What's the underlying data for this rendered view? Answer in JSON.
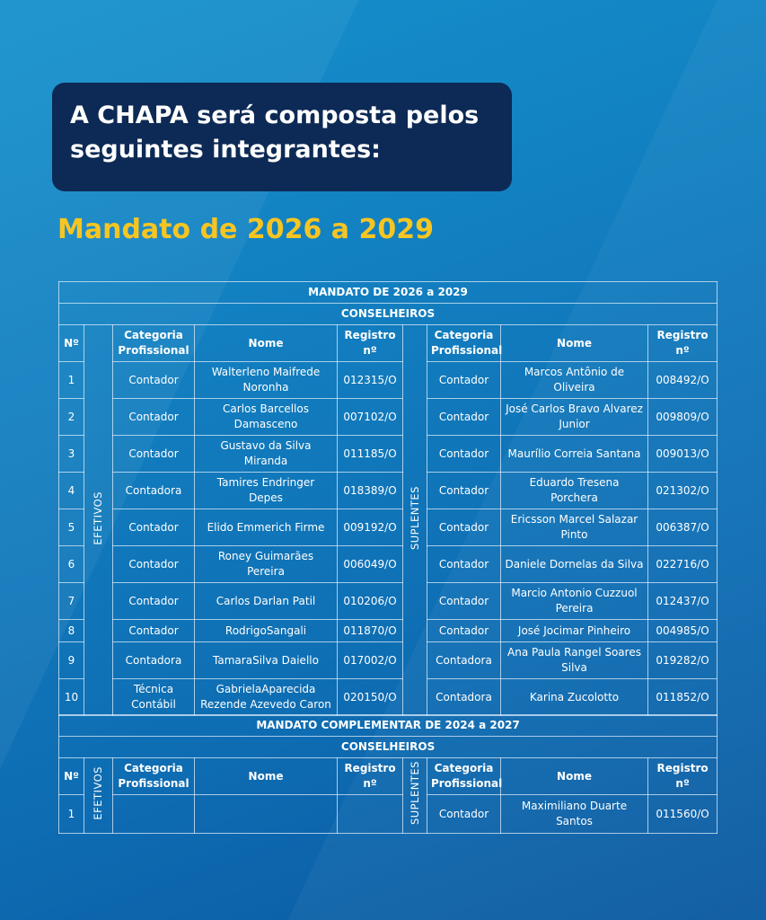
{
  "header": {
    "title": "A CHAPA será composta pelos seguintes integrantes:",
    "subtitle": "Mandato de 2026 a 2029"
  },
  "tables": [
    {
      "title": "MANDATO DE 2026 a 2029",
      "section": "CONSELHEIROS",
      "groups": [
        "EFETIVOS",
        "SUPLENTES"
      ],
      "headers": [
        "Nº",
        "Categoria Profissional",
        "Nome",
        "Registro nº",
        "Categoria Profissional",
        "Nome",
        "Registro nº"
      ],
      "rows": [
        [
          "1",
          "Contador",
          "Walterleno Maifrede Noronha",
          "012315/O",
          "Contador",
          "Marcos Antônio de Oliveira",
          "008492/O"
        ],
        [
          "2",
          "Contador",
          "Carlos Barcellos Damasceno",
          "007102/O",
          "Contador",
          "José Carlos Bravo Alvarez Junior",
          "009809/O"
        ],
        [
          "3",
          "Contador",
          "Gustavo da Silva Miranda",
          "011185/O",
          "Contador",
          "Maurílio Correia Santana",
          "009013/O"
        ],
        [
          "4",
          "Contadora",
          "Tamires Endringer Depes",
          "018389/O",
          "Contador",
          "Eduardo Tresena Porchera",
          "021302/O"
        ],
        [
          "5",
          "Contador",
          "Elido Emmerich Firme",
          "009192/O",
          "Contador",
          "Ericsson Marcel Salazar Pinto",
          "006387/O"
        ],
        [
          "6",
          "Contador",
          "Roney Guimarães Pereira",
          "006049/O",
          "Contador",
          "Daniele Dornelas da Silva",
          "022716/O"
        ],
        [
          "7",
          "Contador",
          "Carlos Darlan Patil",
          "010206/O",
          "Contador",
          "Marcio Antonio Cuzzuol Pereira",
          "012437/O"
        ],
        [
          "8",
          "Contador",
          "RodrigoSangali",
          "011870/O",
          "Contador",
          "José Jocimar Pinheiro",
          "004985/O"
        ],
        [
          "9",
          "Contadora",
          "TamaraSilva Daiello",
          "017002/O",
          "Contadora",
          "Ana Paula Rangel Soares Silva",
          "019282/O"
        ],
        [
          "10",
          "Técnica Contábil",
          "GabrielaAparecida Rezende Azevedo Caron",
          "020150/O",
          "Contadora",
          "Karina Zucolotto",
          "011852/O"
        ]
      ]
    },
    {
      "title": "MANDATO COMPLEMENTAR DE 2024 a 2027",
      "section": "CONSELHEIROS",
      "groups": [
        "EFETIVOS",
        "SUPLENTES"
      ],
      "headers": [
        "Nº",
        "Categoria Profissional",
        "Nome",
        "Registro nº",
        "Categoria Profissional",
        "Nome",
        "Registro nº"
      ],
      "rows": [
        [
          "1",
          null,
          null,
          null,
          "Contador",
          "Maximiliano Duarte Santos",
          "011560/O"
        ]
      ]
    }
  ]
}
